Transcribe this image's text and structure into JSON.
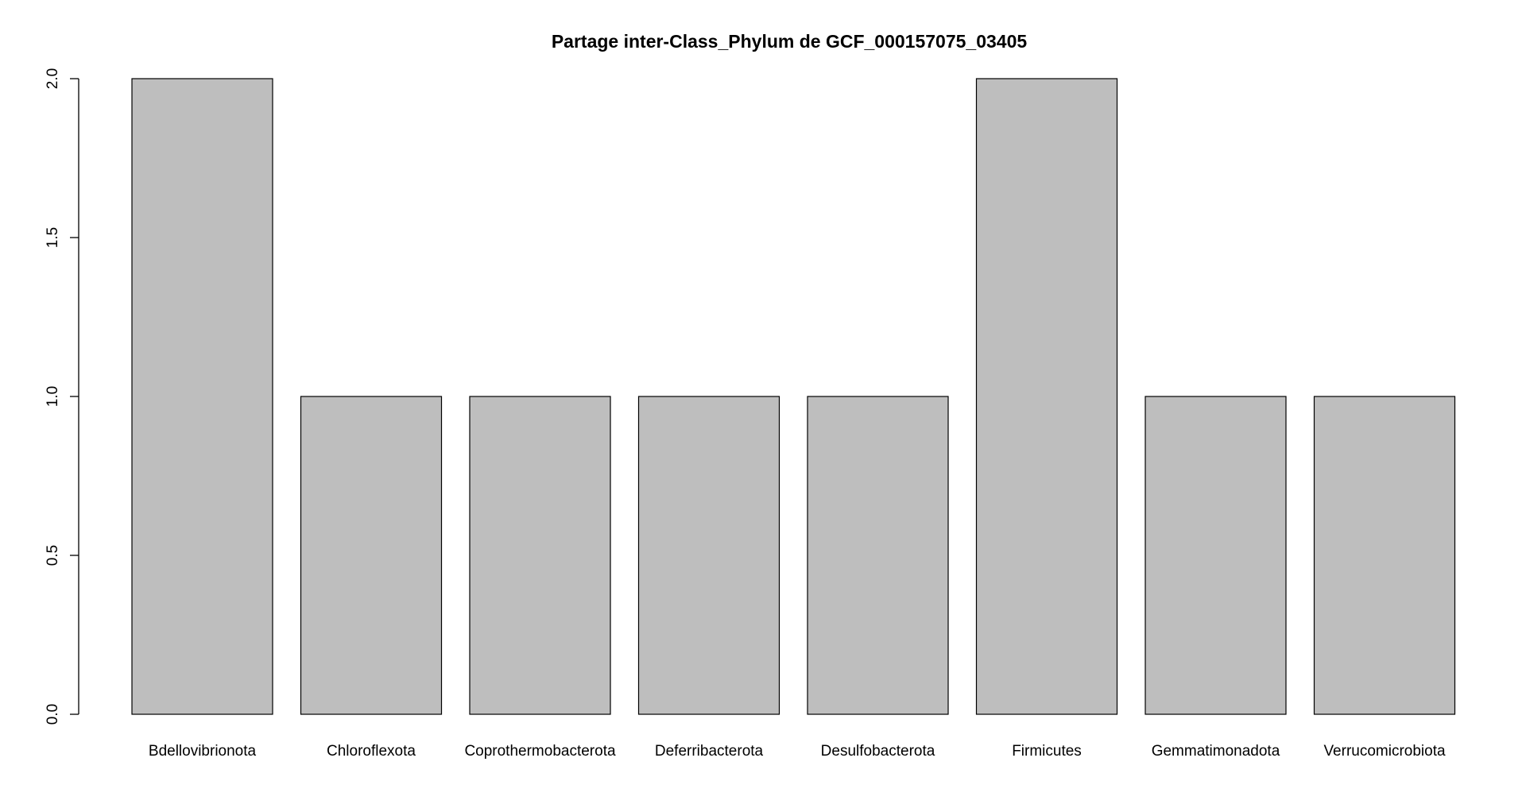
{
  "chart_data": {
    "type": "bar",
    "title": "Partage inter-Class_Phylum de GCF_000157075_03405",
    "xlabel": "",
    "ylabel": "",
    "categories": [
      "Bdellovibrionota",
      "Chloroflexota",
      "Coprothermobacterota",
      "Deferribacterota",
      "Desulfobacterota",
      "Firmicutes",
      "Gemmatimonadota",
      "Verrucomicrobiota"
    ],
    "values": [
      2,
      1,
      1,
      1,
      1,
      2,
      1,
      1
    ],
    "ylim": [
      0,
      2
    ],
    "y_ticks": [
      "0.0",
      "0.5",
      "1.0",
      "1.5",
      "2.0"
    ],
    "grid": false,
    "legend": "none",
    "bar_color": "#bebebe",
    "border_color": "#000000"
  }
}
